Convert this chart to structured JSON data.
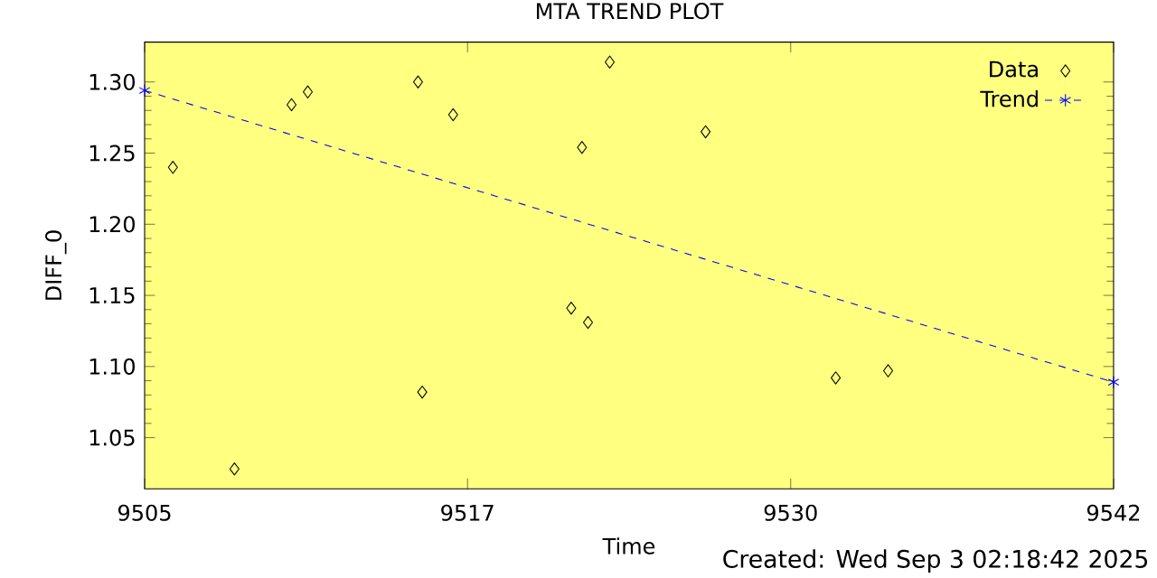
{
  "chart_data": {
    "type": "scatter",
    "title": "MTA TREND PLOT",
    "xlabel": "Time",
    "ylabel": "DIFF_0",
    "annotations": [
      "Created: Wed Sep  3 02:18:42 2025"
    ],
    "xlim": [
      9505,
      9542
    ],
    "ylim": [
      1.014,
      1.328
    ],
    "xticks": [
      9505,
      {
        "value": 9517.33,
        "label": "9517"
      },
      {
        "value": 9529.67,
        "label": "9530"
      },
      9542
    ],
    "yticks": [
      {
        "value": 1.05,
        "label": "1.05"
      },
      {
        "value": 1.1,
        "label": "1.10"
      },
      {
        "value": 1.15,
        "label": "1.15"
      },
      {
        "value": 1.2,
        "label": "1.20"
      },
      {
        "value": 1.25,
        "label": "1.25"
      },
      {
        "value": 1.3,
        "label": "1.30"
      }
    ],
    "grid": false,
    "legend": "top right",
    "series": [
      {
        "name": "Data",
        "marker": "diamond",
        "color": "#000000",
        "x": [
          9506.08,
          9508.43,
          9510.61,
          9511.23,
          9515.44,
          9515.6,
          9516.78,
          9521.29,
          9521.7,
          9521.93,
          9522.76,
          9526.42,
          9531.39,
          9533.39
        ],
        "values": [
          1.24,
          1.028,
          1.284,
          1.293,
          1.3,
          1.082,
          1.277,
          1.141,
          1.254,
          1.131,
          1.314,
          1.265,
          1.092,
          1.097
        ]
      },
      {
        "name": "Trend",
        "type": "line",
        "marker": "cross",
        "line_style": "dashed",
        "color": "#0000ff",
        "x": [
          9505,
          9542
        ],
        "values": [
          1.294,
          1.089
        ]
      }
    ]
  }
}
